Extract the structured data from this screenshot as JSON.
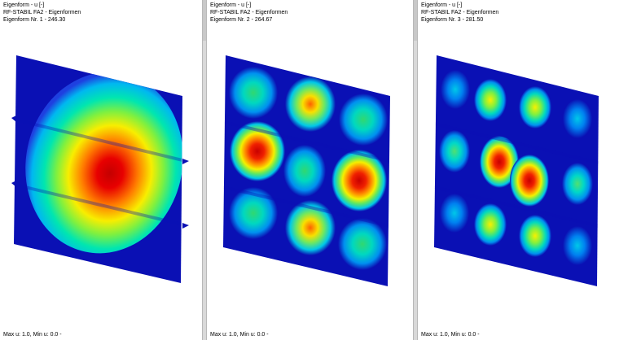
{
  "panels": [
    {
      "title": "Eigenform - u [-]",
      "subtitle": "RF-STABIL FA2 - Eigenformen",
      "mode": "Eigenform Nr. 1  -  246.30",
      "footer": "Max u: 1.0, Min u: 0.0 -"
    },
    {
      "title": "Eigenform - u [-]",
      "subtitle": "RF-STABIL FA2 - Eigenformen",
      "mode": "Eigenform Nr. 2  -  264.67",
      "footer": "Max u: 1.0, Min u: 0.0 -"
    },
    {
      "title": "Eigenform - u [-]",
      "subtitle": "RF-STABIL FA2 - Eigenformen",
      "mode": "Eigenform Nr. 3  -  281.50",
      "footer": "Max u: 1.0, Min u: 0.0 -"
    }
  ],
  "colors": {
    "plate_base": "#0a10b4",
    "separator": "#d9d9d9"
  }
}
